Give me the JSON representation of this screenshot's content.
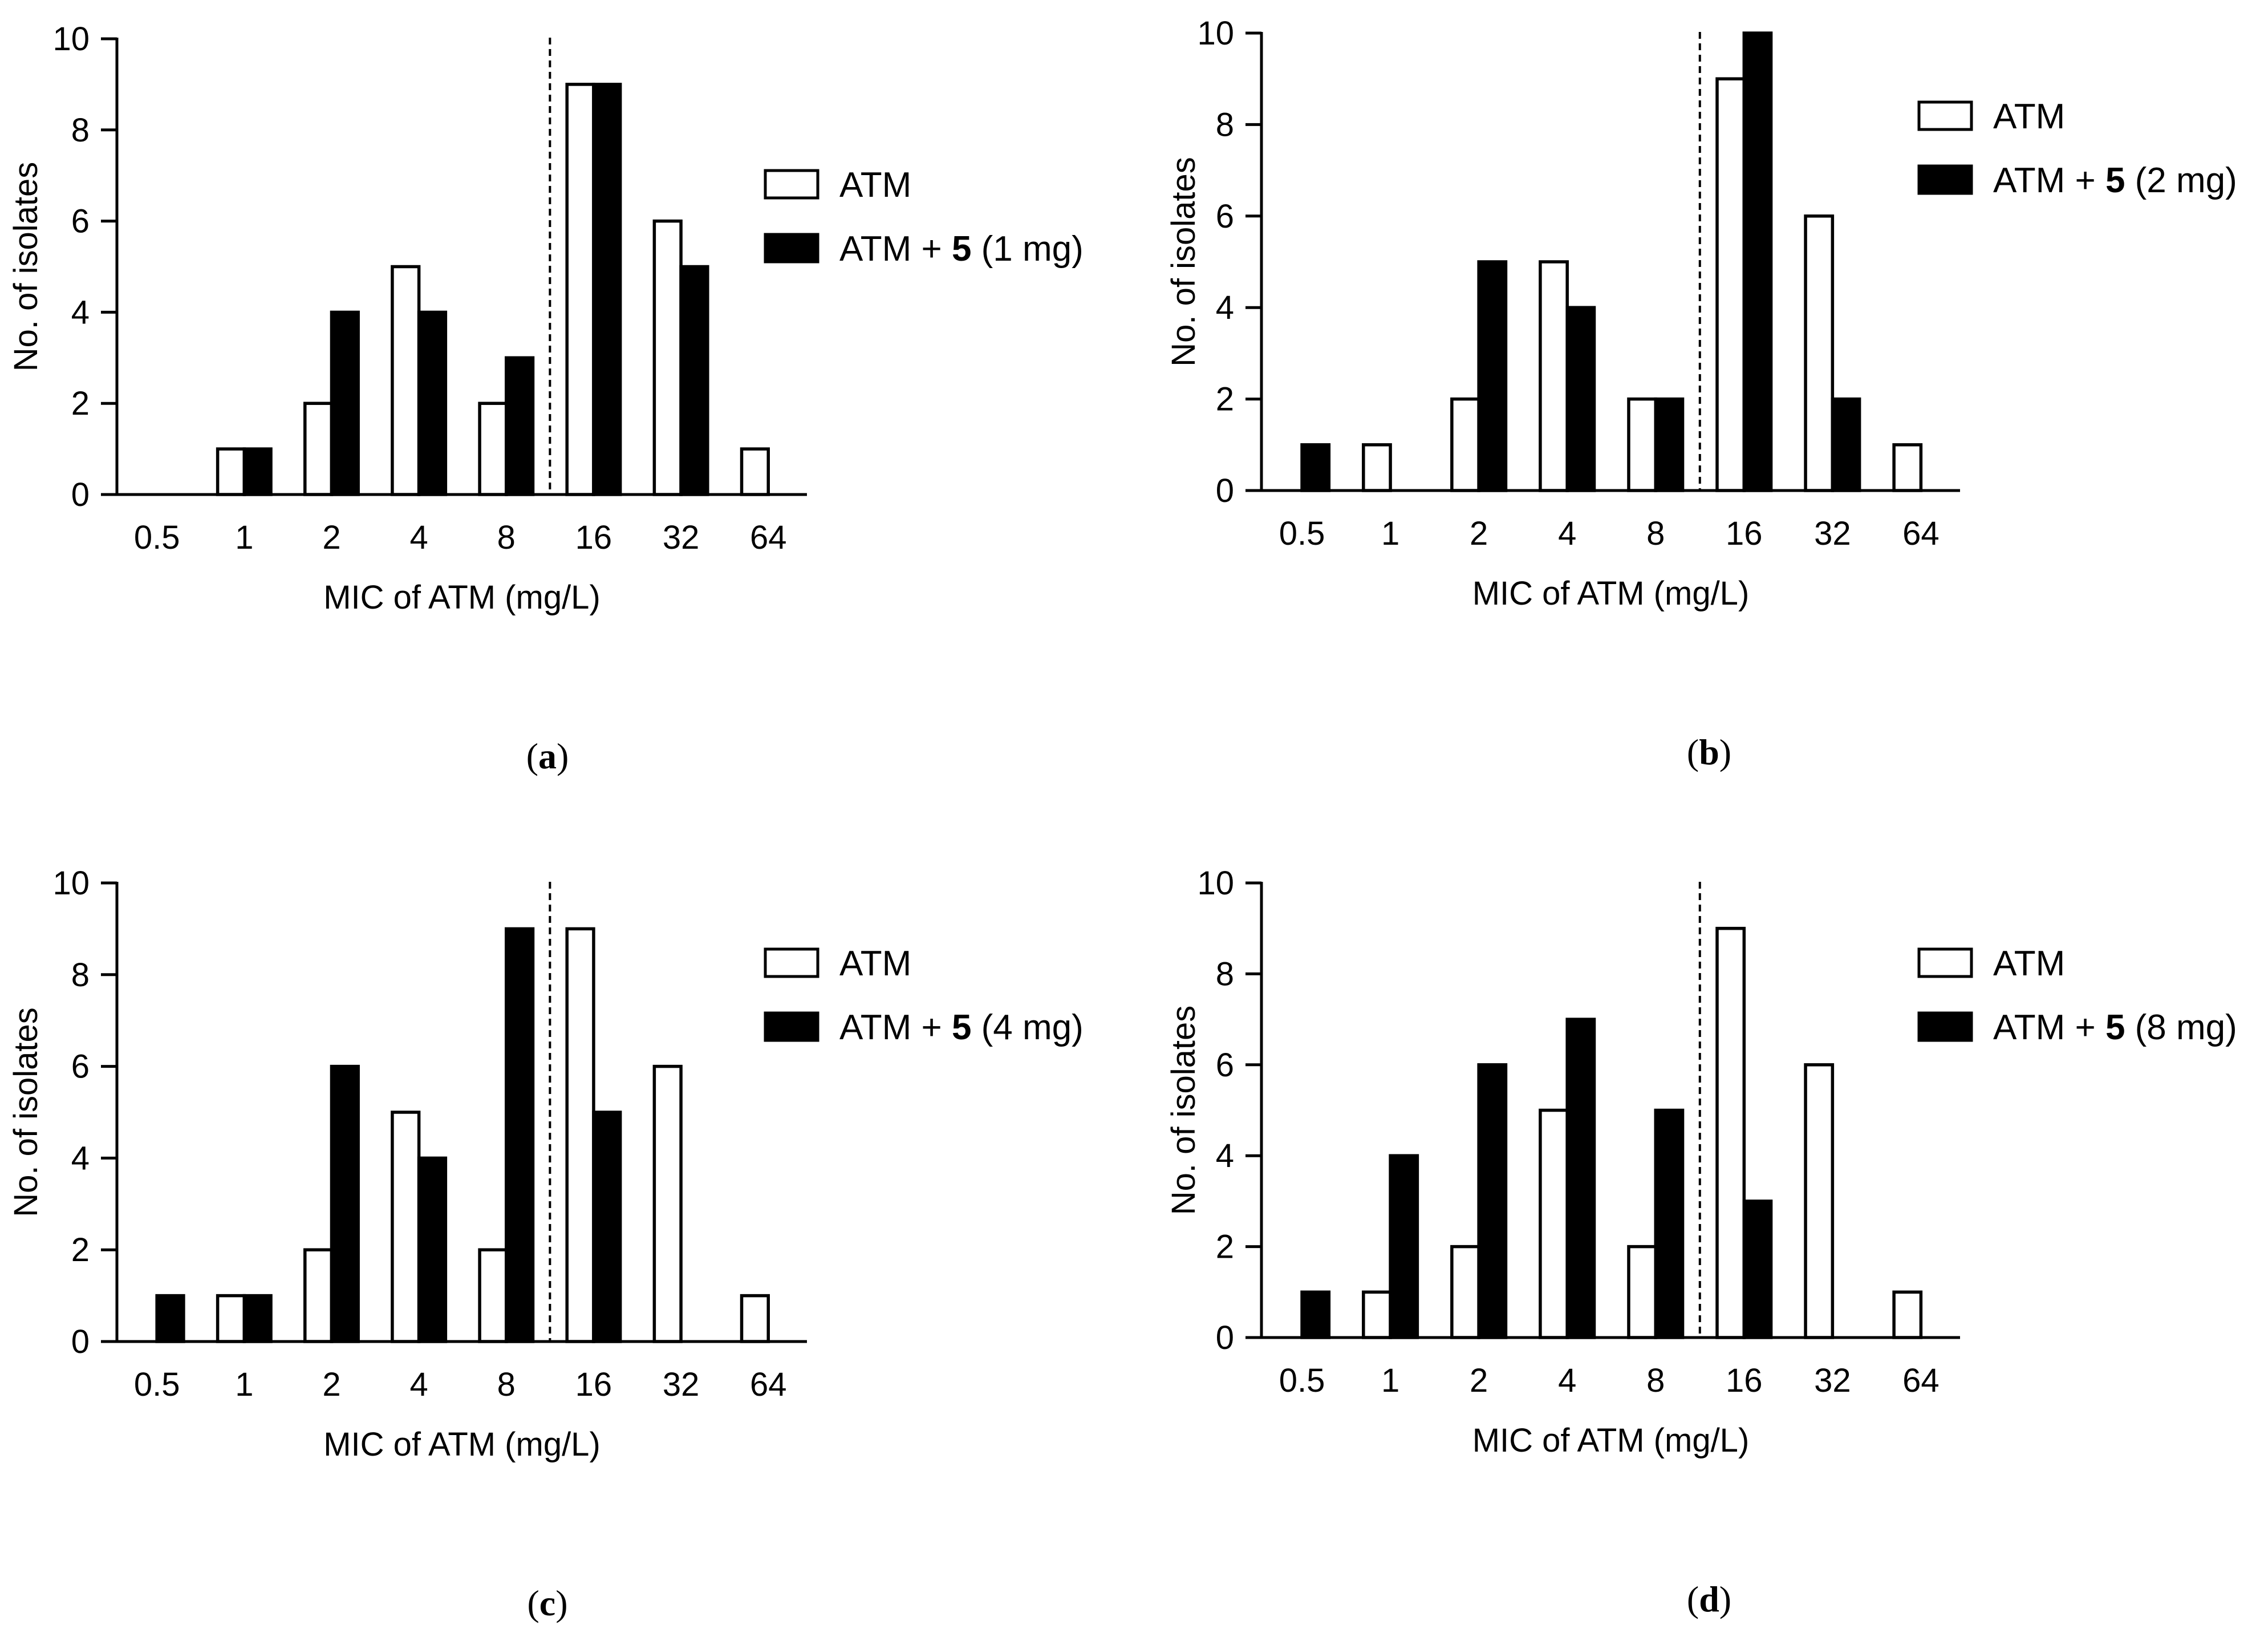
{
  "chart_data": [
    {
      "type": "bar",
      "panel_label": "a",
      "categories": [
        "0.5",
        "1",
        "2",
        "4",
        "8",
        "16",
        "32",
        "64"
      ],
      "series": [
        {
          "name": "ATM",
          "fill": "#ffffff",
          "values": [
            0,
            1,
            2,
            5,
            2,
            9,
            6,
            1
          ]
        },
        {
          "name": "ATM + 5 (1 mg)",
          "fill": "#000000",
          "values": [
            0,
            1,
            4,
            4,
            3,
            9,
            5,
            0
          ]
        }
      ],
      "legend": [
        {
          "parts": [
            {
              "text": "ATM",
              "bold": false
            }
          ]
        },
        {
          "parts": [
            {
              "text": "ATM + ",
              "bold": false
            },
            {
              "text": "5",
              "bold": true
            },
            {
              "text": " (1 mg)",
              "bold": false
            }
          ]
        }
      ],
      "xlabel": "MIC of ATM (mg/L)",
      "ylabel": "No. of isolates",
      "ylim": [
        0,
        10
      ],
      "yticks": [
        "0",
        "2",
        "4",
        "6",
        "8",
        "10"
      ],
      "breakpoint_after_category": "8",
      "legend_position": "right"
    },
    {
      "type": "bar",
      "panel_label": "b",
      "categories": [
        "0.5",
        "1",
        "2",
        "4",
        "8",
        "16",
        "32",
        "64"
      ],
      "series": [
        {
          "name": "ATM",
          "fill": "#ffffff",
          "values": [
            0,
            1,
            2,
            5,
            2,
            9,
            6,
            1
          ]
        },
        {
          "name": "ATM + 5 (2 mg)",
          "fill": "#000000",
          "values": [
            1,
            0,
            5,
            4,
            2,
            10,
            2,
            0
          ]
        }
      ],
      "legend": [
        {
          "parts": [
            {
              "text": "ATM",
              "bold": false
            }
          ]
        },
        {
          "parts": [
            {
              "text": "ATM + ",
              "bold": false
            },
            {
              "text": "5",
              "bold": true
            },
            {
              "text": " (2 mg)",
              "bold": false
            }
          ]
        }
      ],
      "xlabel": "MIC of ATM (mg/L)",
      "ylabel": "No. of isolates",
      "ylim": [
        0,
        10
      ],
      "yticks": [
        "0",
        "2",
        "4",
        "6",
        "8",
        "10"
      ],
      "breakpoint_after_category": "8",
      "legend_position": "right"
    },
    {
      "type": "bar",
      "panel_label": "c",
      "categories": [
        "0.5",
        "1",
        "2",
        "4",
        "8",
        "16",
        "32",
        "64"
      ],
      "series": [
        {
          "name": "ATM",
          "fill": "#ffffff",
          "values": [
            0,
            1,
            2,
            5,
            2,
            9,
            6,
            1
          ]
        },
        {
          "name": "ATM + 5 (4 mg)",
          "fill": "#000000",
          "values": [
            1,
            1,
            6,
            4,
            9,
            5,
            0,
            0
          ]
        }
      ],
      "legend": [
        {
          "parts": [
            {
              "text": "ATM",
              "bold": false
            }
          ]
        },
        {
          "parts": [
            {
              "text": "ATM + ",
              "bold": false
            },
            {
              "text": "5",
              "bold": true
            },
            {
              "text": " (4 mg)",
              "bold": false
            }
          ]
        }
      ],
      "xlabel": "MIC of ATM (mg/L)",
      "ylabel": "No. of isolates",
      "ylim": [
        0,
        10
      ],
      "yticks": [
        "0",
        "2",
        "4",
        "6",
        "8",
        "10"
      ],
      "breakpoint_after_category": "8",
      "legend_position": "right"
    },
    {
      "type": "bar",
      "panel_label": "d",
      "categories": [
        "0.5",
        "1",
        "2",
        "4",
        "8",
        "16",
        "32",
        "64"
      ],
      "series": [
        {
          "name": "ATM",
          "fill": "#ffffff",
          "values": [
            0,
            1,
            2,
            5,
            2,
            9,
            6,
            1
          ]
        },
        {
          "name": "ATM + 5 (8 mg)",
          "fill": "#000000",
          "values": [
            1,
            4,
            6,
            7,
            5,
            3,
            0,
            0
          ]
        }
      ],
      "legend": [
        {
          "parts": [
            {
              "text": "ATM",
              "bold": false
            }
          ]
        },
        {
          "parts": [
            {
              "text": "ATM + ",
              "bold": false
            },
            {
              "text": "5",
              "bold": true
            },
            {
              "text": " (8 mg)",
              "bold": false
            }
          ]
        }
      ],
      "xlabel": "MIC of ATM (mg/L)",
      "ylabel": "No. of isolates",
      "ylim": [
        0,
        10
      ],
      "yticks": [
        "0",
        "2",
        "4",
        "6",
        "8",
        "10"
      ],
      "breakpoint_after_category": "8",
      "legend_position": "right"
    }
  ]
}
